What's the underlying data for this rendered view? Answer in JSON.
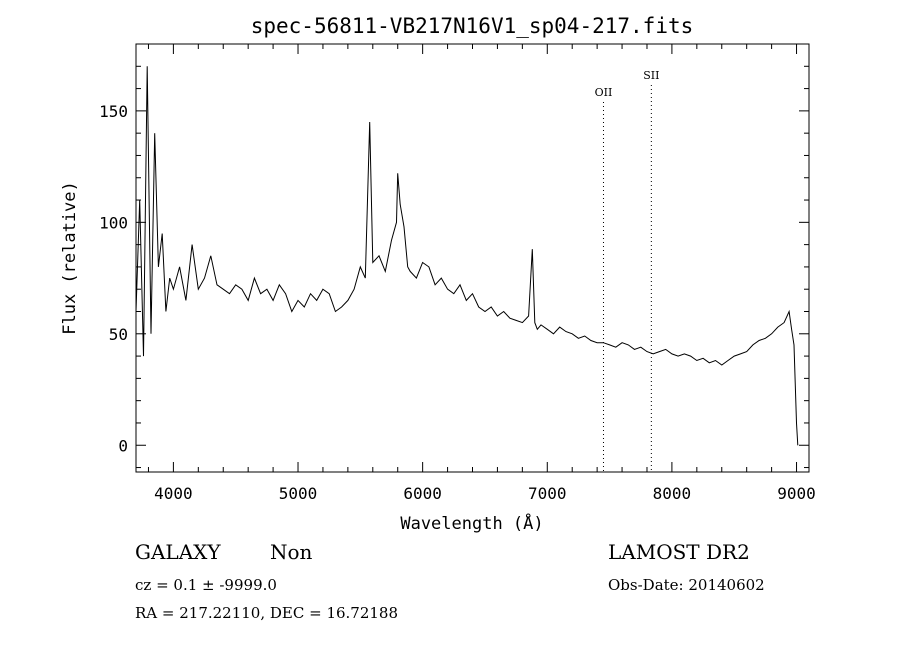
{
  "chart_data": {
    "type": "line",
    "title": "spec-56811-VB217N16V1_sp04-217.fits",
    "xlabel": "Wavelength (Å)",
    "ylabel": "Flux (relative)",
    "xlim": [
      3700,
      9100
    ],
    "ylim": [
      -12,
      180
    ],
    "x_ticks": [
      4000,
      5000,
      6000,
      7000,
      8000,
      9000
    ],
    "y_ticks": [
      0,
      50,
      100,
      150
    ],
    "grid": false,
    "lines": [
      {
        "label": "OII",
        "x": 7451
      },
      {
        "label": "SII",
        "x": 7835
      }
    ],
    "series": [
      {
        "x": [
          3700,
          3730,
          3760,
          3790,
          3820,
          3850,
          3880,
          3910,
          3940,
          3970,
          4000,
          4050,
          4100,
          4150,
          4200,
          4250,
          4300,
          4350,
          4400,
          4450,
          4500,
          4550,
          4600,
          4650,
          4700,
          4750,
          4800,
          4850,
          4900,
          4950,
          5000,
          5050,
          5100,
          5150,
          5200,
          5250,
          5300,
          5350,
          5400,
          5450,
          5500,
          5540,
          5575,
          5600,
          5650,
          5700,
          5750,
          5790,
          5800,
          5820,
          5850,
          5880,
          5900,
          5950,
          6000,
          6050,
          6100,
          6150,
          6200,
          6250,
          6300,
          6350,
          6400,
          6450,
          6500,
          6550,
          6600,
          6650,
          6700,
          6750,
          6800,
          6850,
          6880,
          6900,
          6920,
          6950,
          7000,
          7050,
          7100,
          7150,
          7200,
          7250,
          7300,
          7350,
          7400,
          7450,
          7500,
          7550,
          7600,
          7650,
          7700,
          7750,
          7800,
          7850,
          7900,
          7950,
          8000,
          8050,
          8100,
          8150,
          8200,
          8250,
          8300,
          8350,
          8400,
          8450,
          8500,
          8550,
          8600,
          8650,
          8700,
          8750,
          8800,
          8850,
          8900,
          8940,
          8960,
          8980,
          9000,
          9010
        ],
        "y": [
          60,
          110,
          40,
          170,
          50,
          140,
          80,
          95,
          60,
          75,
          70,
          80,
          65,
          90,
          70,
          75,
          85,
          72,
          70,
          68,
          72,
          70,
          65,
          75,
          68,
          70,
          65,
          72,
          68,
          60,
          65,
          62,
          68,
          65,
          70,
          68,
          60,
          62,
          65,
          70,
          80,
          75,
          145,
          82,
          85,
          78,
          92,
          100,
          122,
          108,
          98,
          80,
          78,
          75,
          82,
          80,
          72,
          75,
          70,
          68,
          72,
          65,
          68,
          62,
          60,
          62,
          58,
          60,
          57,
          56,
          55,
          58,
          88,
          55,
          52,
          54,
          52,
          50,
          53,
          51,
          50,
          48,
          49,
          47,
          46,
          46,
          45,
          44,
          46,
          45,
          43,
          44,
          42,
          41,
          42,
          43,
          41,
          40,
          41,
          40,
          38,
          39,
          37,
          38,
          36,
          38,
          40,
          41,
          42,
          45,
          47,
          48,
          50,
          53,
          55,
          60,
          52,
          45,
          10,
          0
        ]
      }
    ]
  },
  "info": {
    "object_class": "GALAXY",
    "subclass": "Non",
    "survey": "LAMOST DR2",
    "redshift": "cz = 0.1 ± -9999.0",
    "obs_date": "Obs-Date: 20140602",
    "coords": "RA = 217.22110, DEC =  16.72188"
  }
}
